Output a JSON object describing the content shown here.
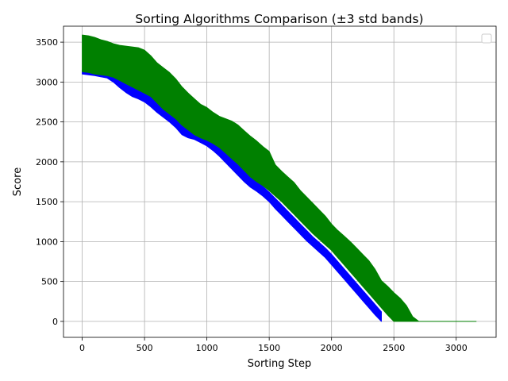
{
  "chart_data": {
    "type": "area",
    "title": "Sorting Algorithms Comparison (±3 std bands)",
    "xlabel": "Sorting Step",
    "ylabel": "Score",
    "xlim": [
      -150,
      3320
    ],
    "ylim": [
      -200,
      3700
    ],
    "xticks": [
      0,
      500,
      1000,
      1500,
      2000,
      2500,
      3000
    ],
    "yticks": [
      0,
      500,
      1000,
      1500,
      2000,
      2500,
      3000,
      3500
    ],
    "grid": true,
    "legend": {
      "placement": "top-right",
      "entries": []
    },
    "series": [
      {
        "color": "#0000ff",
        "x": [
          0,
          100,
          200,
          250,
          300,
          350,
          400,
          450,
          500,
          550,
          600,
          650,
          700,
          750,
          800,
          850,
          900,
          950,
          1000,
          1050,
          1100,
          1150,
          1200,
          1250,
          1300,
          1350,
          1400,
          1450,
          1500,
          1550,
          1600,
          1650,
          1700,
          1750,
          1800,
          1850,
          1900,
          1950,
          2000,
          2050,
          2100,
          2150,
          2200,
          2250,
          2300,
          2350,
          2400
        ],
        "lower": [
          3100,
          3080,
          3050,
          3000,
          2930,
          2870,
          2820,
          2790,
          2750,
          2690,
          2620,
          2560,
          2500,
          2430,
          2340,
          2300,
          2280,
          2240,
          2200,
          2140,
          2070,
          1990,
          1910,
          1830,
          1750,
          1680,
          1630,
          1570,
          1500,
          1410,
          1330,
          1250,
          1170,
          1090,
          1010,
          940,
          870,
          800,
          710,
          620,
          530,
          440,
          350,
          260,
          170,
          80,
          0
        ],
        "upper": [
          3150,
          3140,
          3120,
          3090,
          3040,
          2990,
          2950,
          2920,
          2880,
          2830,
          2760,
          2700,
          2640,
          2580,
          2500,
          2440,
          2400,
          2360,
          2320,
          2260,
          2190,
          2120,
          2040,
          1960,
          1880,
          1800,
          1750,
          1690,
          1620,
          1540,
          1460,
          1380,
          1300,
          1220,
          1140,
          1060,
          990,
          920,
          840,
          750,
          660,
          570,
          480,
          390,
          300,
          210,
          120
        ]
      },
      {
        "color": "#008000",
        "x": [
          0,
          50,
          100,
          150,
          200,
          250,
          300,
          350,
          400,
          450,
          500,
          550,
          600,
          650,
          700,
          750,
          800,
          850,
          900,
          950,
          1000,
          1050,
          1100,
          1150,
          1200,
          1250,
          1300,
          1350,
          1400,
          1450,
          1500,
          1550,
          1600,
          1650,
          1700,
          1750,
          1800,
          1850,
          1900,
          1950,
          2000,
          2050,
          2100,
          2150,
          2200,
          2250,
          2300,
          2350,
          2400,
          2450,
          2500,
          2550,
          2600,
          2650,
          2700,
          2800,
          2900,
          3000,
          3100,
          3160
        ],
        "lower": [
          3130,
          3120,
          3100,
          3090,
          3080,
          3060,
          3020,
          2980,
          2940,
          2900,
          2860,
          2820,
          2740,
          2660,
          2600,
          2540,
          2460,
          2400,
          2340,
          2300,
          2270,
          2230,
          2180,
          2110,
          2040,
          1970,
          1890,
          1810,
          1750,
          1700,
          1640,
          1570,
          1500,
          1420,
          1340,
          1260,
          1180,
          1100,
          1030,
          960,
          890,
          800,
          710,
          620,
          530,
          440,
          350,
          260,
          170,
          80,
          0,
          0,
          0,
          0,
          0,
          0,
          0,
          0,
          0,
          0
        ],
        "upper": [
          3590,
          3580,
          3560,
          3530,
          3510,
          3480,
          3460,
          3450,
          3440,
          3430,
          3400,
          3330,
          3240,
          3180,
          3120,
          3040,
          2940,
          2860,
          2790,
          2720,
          2680,
          2620,
          2570,
          2540,
          2510,
          2460,
          2390,
          2320,
          2260,
          2190,
          2130,
          1960,
          1880,
          1810,
          1740,
          1640,
          1560,
          1480,
          1400,
          1320,
          1220,
          1140,
          1070,
          1000,
          920,
          840,
          760,
          650,
          510,
          440,
          360,
          290,
          200,
          60,
          0,
          0,
          0,
          0,
          0,
          0
        ]
      }
    ]
  }
}
